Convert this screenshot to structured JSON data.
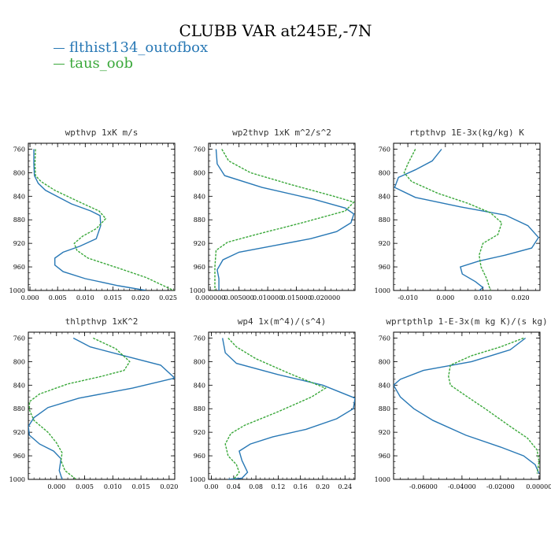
{
  "title": "CLUBB VAR at245E,-7N",
  "legend": [
    {
      "label": "flthist134_outofbox",
      "color": "#2878b5"
    },
    {
      "label": "taus_oob",
      "color": "#3aa83a"
    }
  ],
  "chart_data": [
    {
      "type": "line",
      "title": "wpthvp  1xK m/s",
      "xlim": [
        -0.0003,
        0.0262
      ],
      "ylim": [
        1000,
        750
      ],
      "xticks": [
        0.0,
        0.005,
        0.01,
        0.015,
        0.02,
        0.025
      ],
      "xticklabels": [
        "0.000",
        "0.005",
        "0.010",
        "0.015",
        "0.020",
        "0.025"
      ],
      "yticks": [
        760,
        800,
        840,
        880,
        920,
        960,
        1000
      ],
      "series": [
        {
          "name": "flthist134_outofbox",
          "points": [
            [
              0.0007,
              760
            ],
            [
              0.0007,
              785
            ],
            [
              0.0008,
              805
            ],
            [
              0.0015,
              818
            ],
            [
              0.0028,
              830
            ],
            [
              0.0075,
              853
            ],
            [
              0.011,
              865
            ],
            [
              0.0127,
              873
            ],
            [
              0.0128,
              890
            ],
            [
              0.012,
              912
            ],
            [
              0.009,
              925
            ],
            [
              0.006,
              935
            ],
            [
              0.0045,
              945
            ],
            [
              0.0045,
              957
            ],
            [
              0.006,
              968
            ],
            [
              0.01,
              980
            ],
            [
              0.016,
              992
            ],
            [
              0.021,
              1000
            ]
          ]
        },
        {
          "name": "taus_oob",
          "points": [
            [
              0.001,
              760
            ],
            [
              0.0009,
              785
            ],
            [
              0.001,
              805
            ],
            [
              0.002,
              815
            ],
            [
              0.0045,
              830
            ],
            [
              0.009,
              850
            ],
            [
              0.0125,
              865
            ],
            [
              0.0137,
              878
            ],
            [
              0.012,
              895
            ],
            [
              0.0095,
              908
            ],
            [
              0.008,
              920
            ],
            [
              0.0085,
              932
            ],
            [
              0.0105,
              945
            ],
            [
              0.016,
              962
            ],
            [
              0.021,
              978
            ],
            [
              0.026,
              1000
            ]
          ]
        }
      ]
    },
    {
      "type": "line",
      "title": "wp2thvp  1xK m^2/s^2",
      "xlim": [
        -0.0003,
        0.0252
      ],
      "ylim": [
        1000,
        750
      ],
      "xticks": [
        0.0,
        0.005,
        0.01,
        0.015,
        0.02
      ],
      "xticklabels": [
        "0.000000",
        "0.005000",
        "0.010000",
        "0.015000",
        "0.020000"
      ],
      "yticks": [
        760,
        800,
        840,
        880,
        920,
        960,
        1000
      ],
      "series": [
        {
          "name": "flthist134_outofbox",
          "points": [
            [
              0.001,
              760
            ],
            [
              0.0012,
              785
            ],
            [
              0.0025,
              805
            ],
            [
              0.009,
              825
            ],
            [
              0.018,
              845
            ],
            [
              0.0235,
              860
            ],
            [
              0.025,
              870
            ],
            [
              0.0245,
              885
            ],
            [
              0.022,
              900
            ],
            [
              0.0175,
              912
            ],
            [
              0.011,
              924
            ],
            [
              0.005,
              935
            ],
            [
              0.0022,
              948
            ],
            [
              0.0012,
              965
            ],
            [
              0.0015,
              980
            ],
            [
              0.0015,
              1000
            ]
          ]
        },
        {
          "name": "taus_oob",
          "points": [
            [
              0.002,
              760
            ],
            [
              0.0032,
              780
            ],
            [
              0.007,
              800
            ],
            [
              0.014,
              820
            ],
            [
              0.0215,
              840
            ],
            [
              0.025,
              850
            ],
            [
              0.0235,
              865
            ],
            [
              0.016,
              885
            ],
            [
              0.008,
              905
            ],
            [
              0.003,
              918
            ],
            [
              0.001,
              932
            ],
            [
              0.0008,
              960
            ],
            [
              0.0008,
              1000
            ]
          ]
        }
      ]
    },
    {
      "type": "line",
      "title": "rtpthvp  1E-3x(kg/kg) K",
      "xlim": [
        -0.0138,
        0.0252
      ],
      "ylim": [
        1000,
        750
      ],
      "xticks": [
        -0.01,
        0.0,
        0.01,
        0.02
      ],
      "xticklabels": [
        "-0.010",
        "0.000",
        "0.010",
        "0.020"
      ],
      "yticks": [
        760,
        800,
        840,
        880,
        920,
        960,
        1000
      ],
      "series": [
        {
          "name": "flthist134_outofbox",
          "points": [
            [
              -0.001,
              760
            ],
            [
              -0.0035,
              780
            ],
            [
              -0.008,
              795
            ],
            [
              -0.0125,
              808
            ],
            [
              -0.0135,
              825
            ],
            [
              -0.008,
              842
            ],
            [
              0.004,
              858
            ],
            [
              0.016,
              872
            ],
            [
              0.022,
              890
            ],
            [
              0.0248,
              910
            ],
            [
              0.023,
              928
            ],
            [
              0.016,
              940
            ],
            [
              0.009,
              950
            ],
            [
              0.004,
              960
            ],
            [
              0.0045,
              972
            ],
            [
              0.008,
              985
            ],
            [
              0.01,
              995
            ],
            [
              0.009,
              1000
            ]
          ]
        },
        {
          "name": "taus_oob",
          "points": [
            [
              -0.008,
              760
            ],
            [
              -0.01,
              785
            ],
            [
              -0.011,
              800
            ],
            [
              -0.009,
              815
            ],
            [
              -0.002,
              835
            ],
            [
              0.006,
              852
            ],
            [
              0.012,
              868
            ],
            [
              0.015,
              885
            ],
            [
              0.014,
              905
            ],
            [
              0.01,
              920
            ],
            [
              0.009,
              940
            ],
            [
              0.0095,
              960
            ],
            [
              0.011,
              980
            ],
            [
              0.012,
              1000
            ]
          ]
        }
      ]
    },
    {
      "type": "line",
      "title": "thlpthvp  1xK^2",
      "xlim": [
        -0.005,
        0.021
      ],
      "ylim": [
        1000,
        750
      ],
      "xticks": [
        0.0,
        0.005,
        0.01,
        0.015,
        0.02
      ],
      "xticklabels": [
        "0.000",
        "0.005",
        "0.010",
        "0.015",
        "0.020"
      ],
      "yticks": [
        760,
        800,
        840,
        880,
        920,
        960,
        1000
      ],
      "series": [
        {
          "name": "flthist134_outofbox",
          "points": [
            [
              0.003,
              760
            ],
            [
              0.006,
              775
            ],
            [
              0.012,
              790
            ],
            [
              0.0185,
              806
            ],
            [
              0.021,
              828
            ],
            [
              0.0135,
              845
            ],
            [
              0.004,
              862
            ],
            [
              -0.0015,
              878
            ],
            [
              -0.004,
              895
            ],
            [
              -0.005,
              910
            ],
            [
              -0.0048,
              925
            ],
            [
              -0.003,
              940
            ],
            [
              -0.0005,
              952
            ],
            [
              0.0008,
              965
            ],
            [
              0.0005,
              985
            ],
            [
              0.001,
              1000
            ]
          ]
        },
        {
          "name": "taus_oob",
          "points": [
            [
              0.0065,
              760
            ],
            [
              0.0105,
              778
            ],
            [
              0.013,
              800
            ],
            [
              0.012,
              815
            ],
            [
              0.008,
              825
            ],
            [
              0.002,
              838
            ],
            [
              -0.003,
              855
            ],
            [
              -0.0048,
              868
            ],
            [
              -0.0048,
              882
            ],
            [
              -0.004,
              900
            ],
            [
              -0.0015,
              920
            ],
            [
              0.0,
              938
            ],
            [
              0.001,
              955
            ],
            [
              0.0008,
              968
            ],
            [
              0.0015,
              985
            ],
            [
              0.0035,
              1000
            ]
          ]
        }
      ]
    },
    {
      "type": "line",
      "title": "wp4  1x(m^4)/(s^4)",
      "xlim": [
        -0.005,
        0.258
      ],
      "ylim": [
        1000,
        750
      ],
      "xticks": [
        0.0,
        0.04,
        0.08,
        0.12,
        0.16,
        0.2,
        0.24
      ],
      "xticklabels": [
        "0.00",
        "0.04",
        "0.08",
        "0.12",
        "0.16",
        "0.20",
        "0.24"
      ],
      "yticks": [
        760,
        800,
        840,
        880,
        920,
        960,
        1000
      ],
      "series": [
        {
          "name": "flthist134_outofbox",
          "points": [
            [
              0.02,
              760
            ],
            [
              0.025,
              785
            ],
            [
              0.045,
              803
            ],
            [
              0.12,
              822
            ],
            [
              0.2,
              840
            ],
            [
              0.258,
              862
            ],
            [
              0.255,
              880
            ],
            [
              0.225,
              897
            ],
            [
              0.17,
              915
            ],
            [
              0.11,
              928
            ],
            [
              0.07,
              940
            ],
            [
              0.05,
              952
            ],
            [
              0.055,
              968
            ],
            [
              0.065,
              988
            ],
            [
              0.055,
              998
            ],
            [
              0.03,
              1000
            ]
          ]
        },
        {
          "name": "taus_oob",
          "points": [
            [
              0.03,
              760
            ],
            [
              0.045,
              775
            ],
            [
              0.08,
              795
            ],
            [
              0.14,
              820
            ],
            [
              0.205,
              845
            ],
            [
              0.18,
              860
            ],
            [
              0.12,
              885
            ],
            [
              0.06,
              908
            ],
            [
              0.035,
              922
            ],
            [
              0.025,
              940
            ],
            [
              0.03,
              960
            ],
            [
              0.045,
              975
            ],
            [
              0.05,
              988
            ],
            [
              0.04,
              1000
            ]
          ]
        }
      ]
    },
    {
      "type": "line",
      "title": "wprtpthlp  1-E-3x(m kg K)/(s kg)",
      "xlim": [
        -0.0755,
        0.0005
      ],
      "ylim": [
        1000,
        750
      ],
      "xticks": [
        -0.06,
        -0.04,
        -0.02,
        0.0
      ],
      "xticklabels": [
        "-0.06000",
        "-0.04000",
        "-0.02000",
        "0.00000"
      ],
      "yticks": [
        760,
        800,
        840,
        880,
        920,
        960,
        1000
      ],
      "series": [
        {
          "name": "flthist134_outofbox",
          "points": [
            [
              -0.007,
              760
            ],
            [
              -0.015,
              780
            ],
            [
              -0.035,
              800
            ],
            [
              -0.06,
              815
            ],
            [
              -0.072,
              830
            ],
            [
              -0.0755,
              840
            ],
            [
              -0.072,
              860
            ],
            [
              -0.065,
              880
            ],
            [
              -0.055,
              900
            ],
            [
              -0.038,
              925
            ],
            [
              -0.02,
              945
            ],
            [
              -0.008,
              960
            ],
            [
              -0.002,
              975
            ],
            [
              0.0,
              990
            ]
          ]
        },
        {
          "name": "taus_oob",
          "points": [
            [
              -0.008,
              760
            ],
            [
              -0.02,
              775
            ],
            [
              -0.035,
              790
            ],
            [
              -0.046,
              806
            ],
            [
              -0.047,
              825
            ],
            [
              -0.046,
              840
            ],
            [
              -0.038,
              858
            ],
            [
              -0.028,
              880
            ],
            [
              -0.015,
              910
            ],
            [
              -0.006,
              930
            ],
            [
              -0.001,
              950
            ],
            [
              0.0,
              970
            ],
            [
              -0.001,
              990
            ]
          ]
        }
      ]
    }
  ]
}
